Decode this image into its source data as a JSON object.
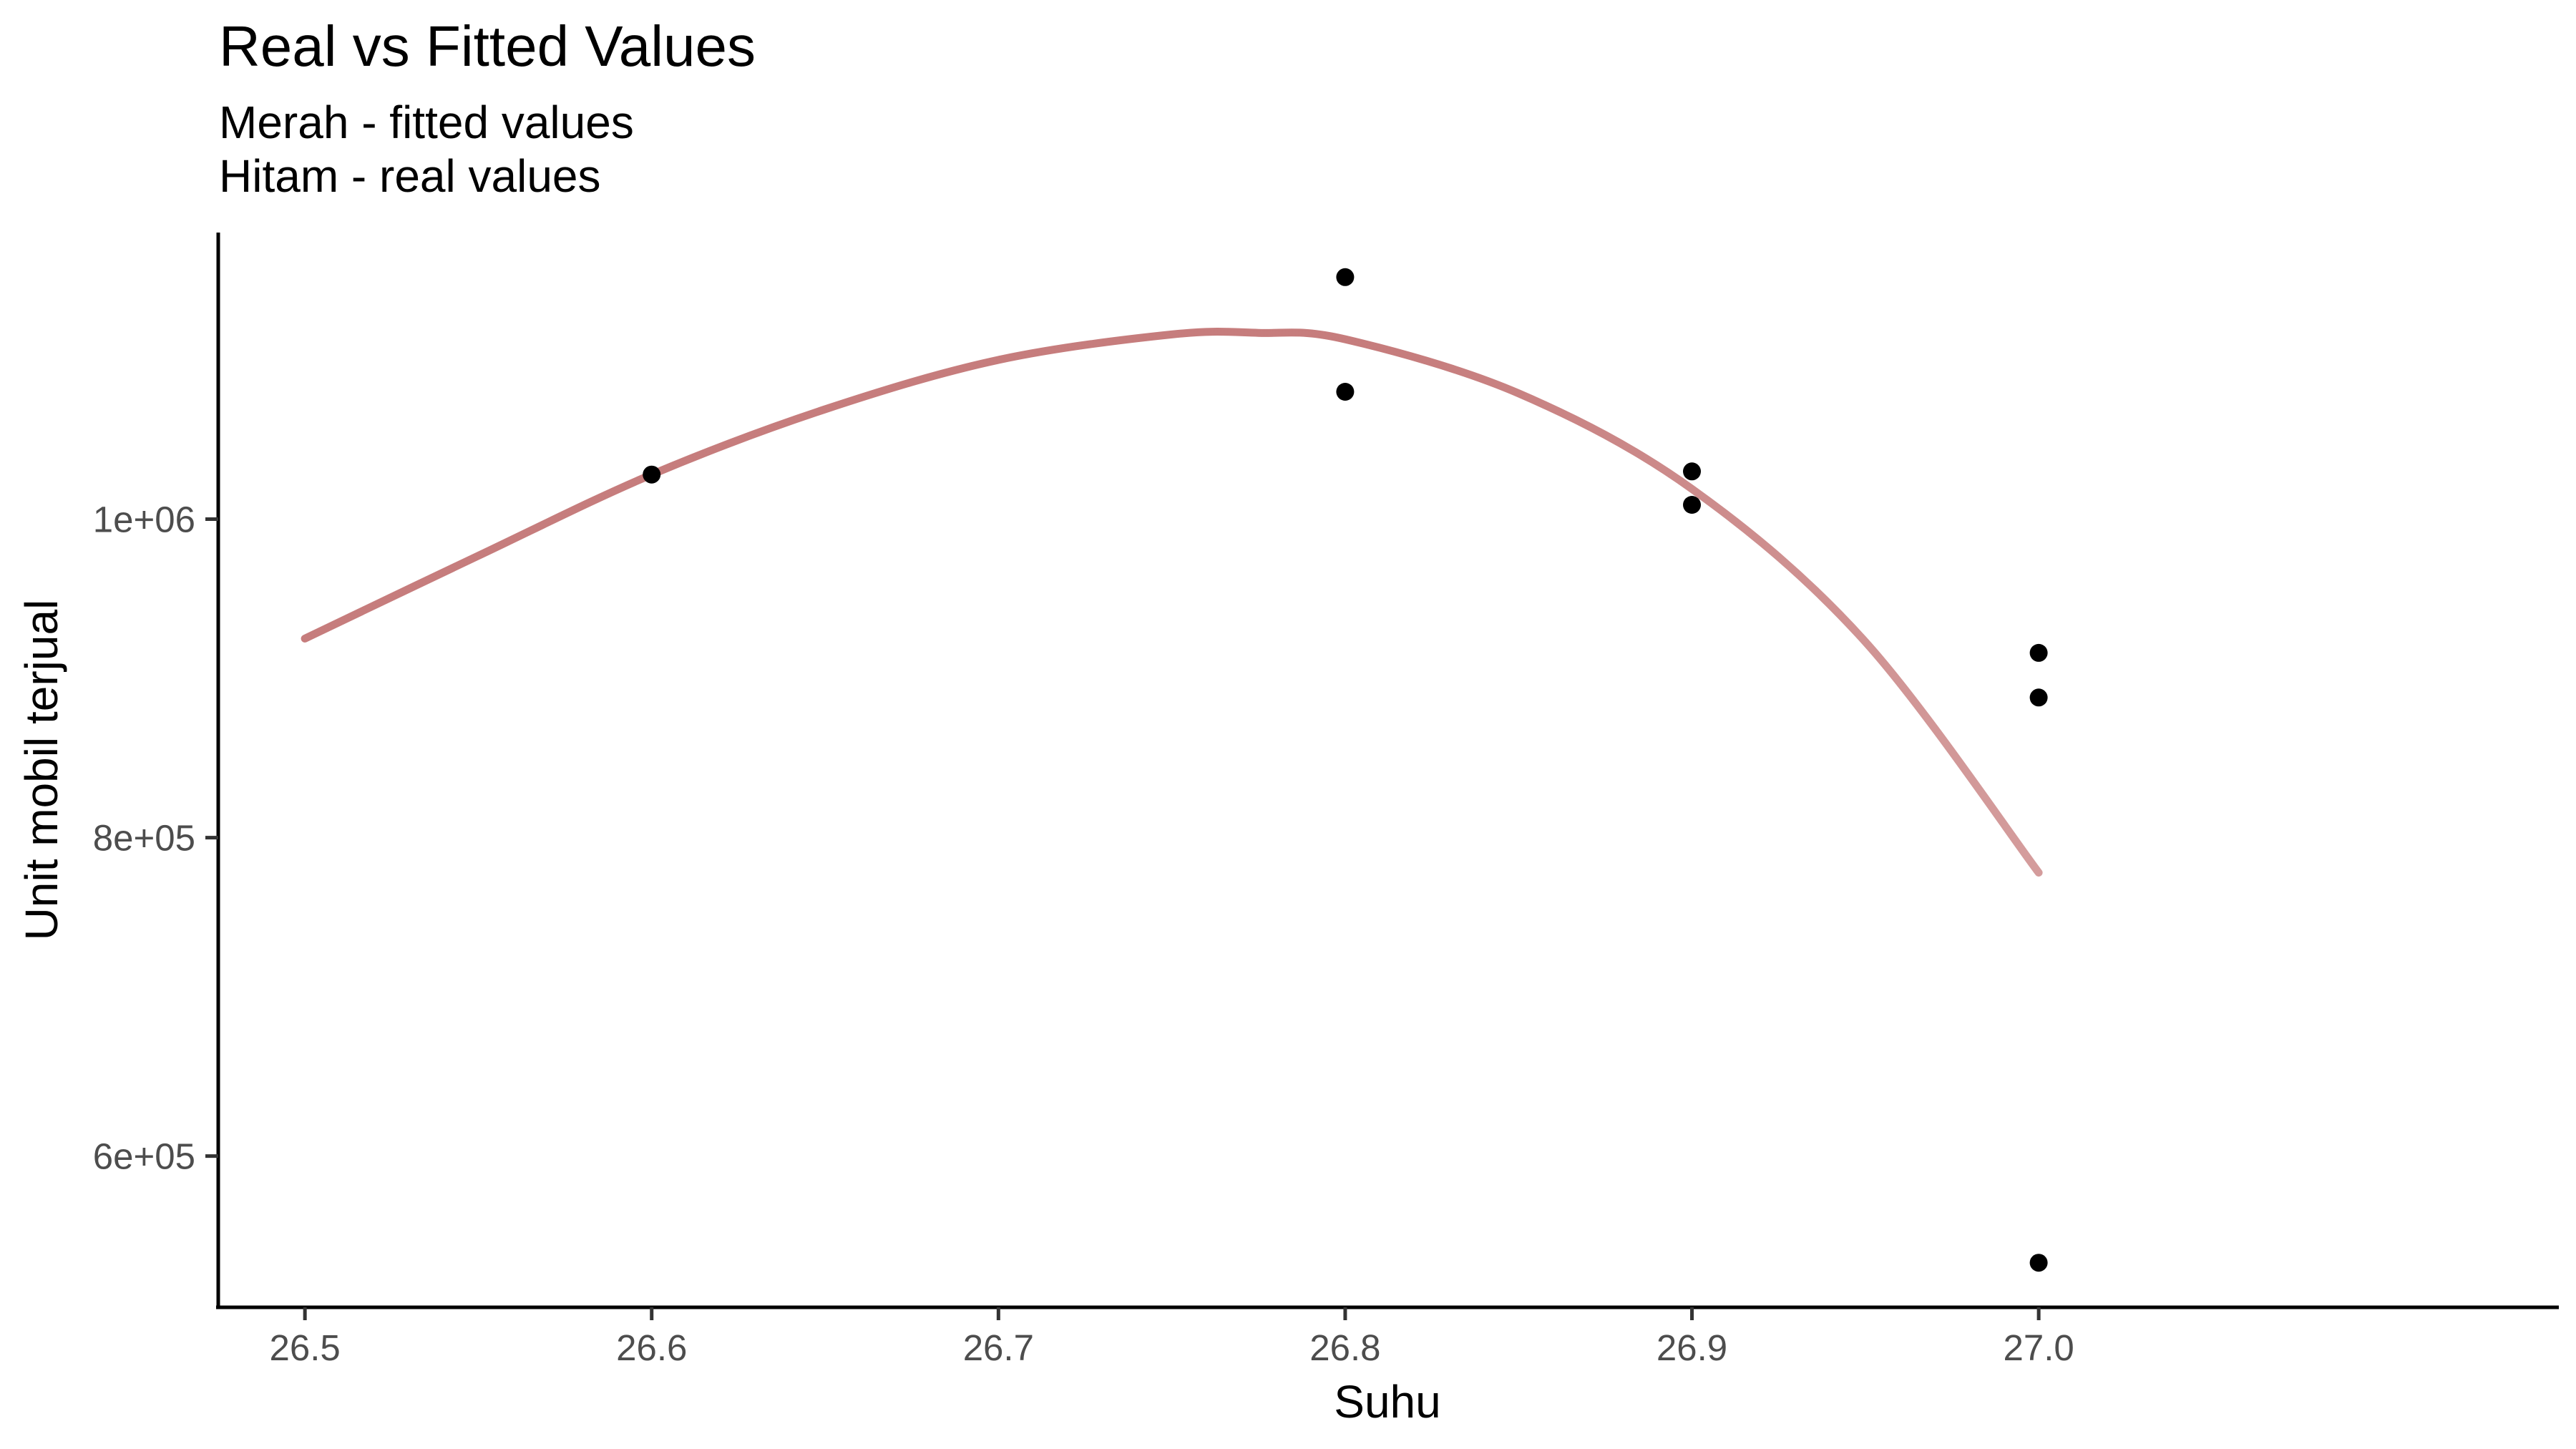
{
  "chart_data": {
    "type": "scatter",
    "title": "Real vs Fitted Values",
    "subtitle_lines": [
      "Merah - fitted values",
      "Hitam - real values"
    ],
    "xlabel": "Suhu",
    "ylabel": "Unit mobil terjual",
    "xlim": [
      26.475,
      27.15
    ],
    "ylim": [
      505000,
      1180000
    ],
    "x_ticks": [
      {
        "value": 26.5,
        "label": "26.5"
      },
      {
        "value": 26.6,
        "label": "26.6"
      },
      {
        "value": 26.7,
        "label": "26.7"
      },
      {
        "value": 26.8,
        "label": "26.8"
      },
      {
        "value": 26.9,
        "label": "26.9"
      },
      {
        "value": 27.0,
        "label": "27.0"
      }
    ],
    "y_ticks": [
      {
        "value": 600000,
        "label": "6e+05"
      },
      {
        "value": 800000,
        "label": "8e+05"
      },
      {
        "value": 1000000,
        "label": "1e+06"
      }
    ],
    "grid": false,
    "series": [
      {
        "kind": "points",
        "color": "#000000",
        "points": [
          {
            "x": 26.6,
            "y": 1028000
          },
          {
            "x": 26.8,
            "y": 1152000
          },
          {
            "x": 26.8,
            "y": 1080000
          },
          {
            "x": 26.9,
            "y": 1030000
          },
          {
            "x": 26.9,
            "y": 1009000
          },
          {
            "x": 27.0,
            "y": 916000
          },
          {
            "x": 27.0,
            "y": 888000
          },
          {
            "x": 27.0,
            "y": 533000
          }
        ]
      },
      {
        "kind": "line",
        "color": "#b04a4a",
        "points": [
          {
            "x": 26.5,
            "y": 925000
          },
          {
            "x": 26.55,
            "y": 977000
          },
          {
            "x": 26.6,
            "y": 1028000
          },
          {
            "x": 26.65,
            "y": 1069000
          },
          {
            "x": 26.7,
            "y": 1100000
          },
          {
            "x": 26.75,
            "y": 1116000
          },
          {
            "x": 26.775,
            "y": 1117000
          },
          {
            "x": 26.8,
            "y": 1113000
          },
          {
            "x": 26.85,
            "y": 1079000
          },
          {
            "x": 26.9,
            "y": 1019000
          },
          {
            "x": 26.95,
            "y": 923000
          },
          {
            "x": 27.0,
            "y": 778000
          }
        ]
      }
    ]
  }
}
